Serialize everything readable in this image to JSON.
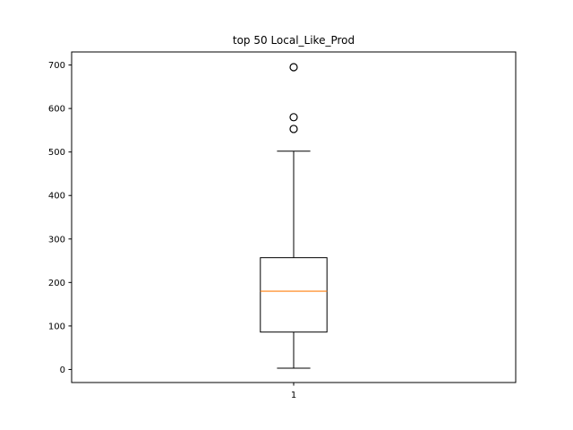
{
  "chart_data": {
    "type": "box",
    "title": "top 50 Local_Like_Prod",
    "xlabel": "",
    "ylabel": "",
    "categories": [
      "1"
    ],
    "boxes": [
      {
        "category": "1",
        "whisker_low": 3,
        "q1": 86,
        "median": 180,
        "q3": 257,
        "whisker_high": 502,
        "outliers": [
          553,
          580,
          695
        ]
      }
    ],
    "ylim": [
      -30,
      730
    ],
    "yticks": [
      "0",
      "100",
      "200",
      "300",
      "400",
      "500",
      "600",
      "700"
    ],
    "grid": false,
    "colors": {
      "box": "#000000",
      "median": "#ff7f0e",
      "outlier_edge": "#000000"
    }
  }
}
